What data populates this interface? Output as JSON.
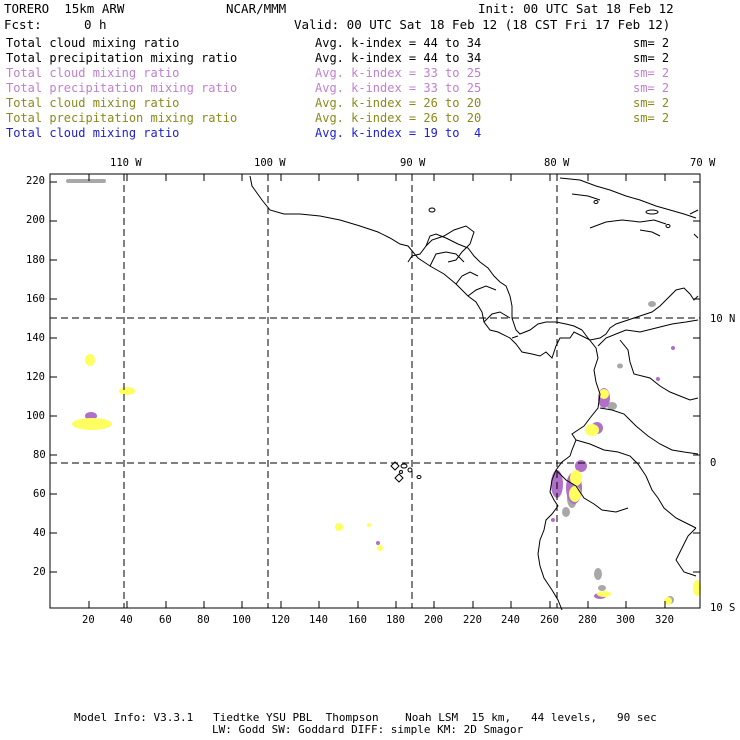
{
  "header": {
    "model": "TORERO  15km ARW",
    "org": "NCAR/MMM",
    "init": "Init: 00 UTC Sat 18 Feb 12",
    "fcst_label": "Fcst:",
    "fcst_value": "0 h",
    "valid": "Valid: 00 UTC Sat 18 Feb 12 (18 CST Fri 17 Feb 12)"
  },
  "legend": [
    {
      "field": "Total cloud mixing ratio",
      "index": "Avg. k-index = 44 to 34",
      "sm": "sm= 2",
      "color": "#000000"
    },
    {
      "field": "Total precipitation mixing ratio",
      "index": "Avg. k-index = 44 to 34",
      "sm": "sm= 2",
      "color": "#000000"
    },
    {
      "field": "Total cloud mixing ratio",
      "index": "Avg. k-index = 33 to 25",
      "sm": "sm= 2",
      "color": "#c080d0"
    },
    {
      "field": "Total precipitation mixing ratio",
      "index": "Avg. k-index = 33 to 25",
      "sm": "sm= 2",
      "color": "#c080d0"
    },
    {
      "field": "Total cloud mixing ratio",
      "index": "Avg. k-index = 26 to 20",
      "sm": "sm= 2",
      "color": "#8a8a1a"
    },
    {
      "field": "Total precipitation mixing ratio",
      "index": "Avg. k-index = 26 to 20",
      "sm": "sm= 2",
      "color": "#8a8a1a"
    },
    {
      "field": "Total cloud mixing ratio",
      "index": "Avg. k-index = 19 to  4",
      "sm": "",
      "color": "#2020d0"
    }
  ],
  "map": {
    "lon_labels": [
      "110 W",
      "100 W",
      "90 W",
      "80 W",
      "70 W"
    ],
    "lat_labels": [
      "10 N",
      "0",
      "10 S"
    ],
    "y_ticks": [
      "220",
      "200",
      "180",
      "160",
      "140",
      "120",
      "100",
      "80",
      "60",
      "40",
      "20"
    ],
    "x_ticks": [
      "20",
      "40",
      "60",
      "80",
      "100",
      "120",
      "140",
      "160",
      "180",
      "200",
      "220",
      "240",
      "260",
      "280",
      "300",
      "320"
    ],
    "colors": {
      "gray": "#a8a8a8",
      "purple": "#b070c8",
      "yellow": "#ffff60"
    }
  },
  "footer": {
    "line1": "Model Info: V3.3.1   Tiedtke YSU PBL  Thompson    Noah LSM  15 km,   44 levels,   90 sec",
    "line2": "LW: Godd SW: Goddard DIFF: simple KM: 2D Smagor"
  }
}
